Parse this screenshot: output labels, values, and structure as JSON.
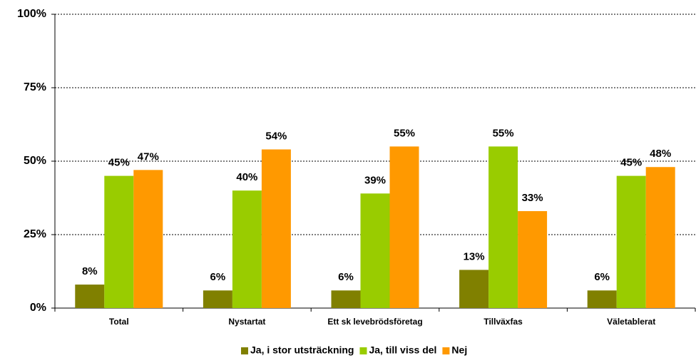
{
  "chart_data": {
    "type": "bar",
    "categories": [
      "Total",
      "Nystartat",
      "Ett sk levebrödsföretag",
      "Tillväxfas",
      "Väletablerat"
    ],
    "series": [
      {
        "name": "Ja, i stor utsträckning",
        "color": "#808000",
        "values": [
          8,
          6,
          6,
          13,
          6
        ],
        "value_labels": [
          "8%",
          "6%",
          "6%",
          "13%",
          "6%"
        ]
      },
      {
        "name": "Ja, till viss del",
        "color": "#99cc00",
        "values": [
          45,
          40,
          39,
          55,
          45
        ],
        "value_labels": [
          "45%",
          "40%",
          "39%",
          "55%",
          "45%"
        ]
      },
      {
        "name": "Nej",
        "color": "#ff9900",
        "values": [
          47,
          54,
          55,
          33,
          48
        ],
        "value_labels": [
          "47%",
          "54%",
          "55%",
          "33%",
          "48%"
        ]
      }
    ],
    "ylim": [
      0,
      100
    ],
    "yticks": [
      {
        "value": 0,
        "label": "0%"
      },
      {
        "value": 25,
        "label": "25%"
      },
      {
        "value": 50,
        "label": "50%"
      },
      {
        "value": 75,
        "label": "75%"
      },
      {
        "value": 100,
        "label": "100%"
      }
    ],
    "grid": true,
    "legend": "bottom"
  }
}
